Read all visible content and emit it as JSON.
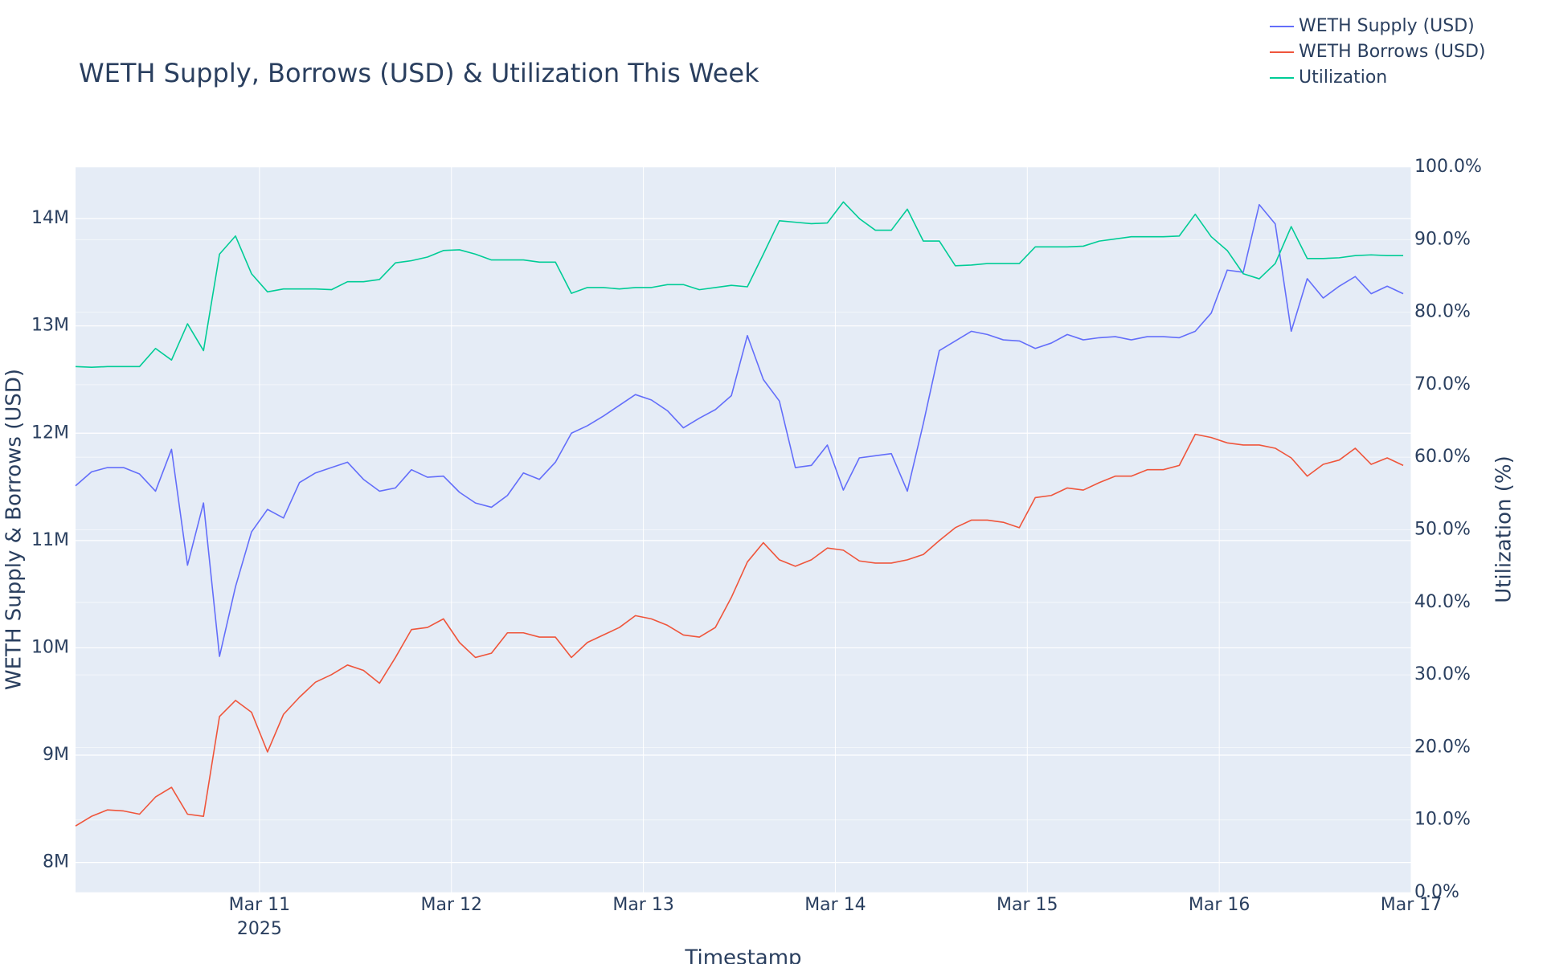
{
  "chart_data": {
    "type": "line",
    "title": "WETH Supply, Borrows (USD) & Utilization This Week",
    "xlabel": "Timestamp",
    "ylabel": "WETH Supply & Borrows (USD)",
    "y2label": "Utilization (%)",
    "x": [
      "2025-03-10T01:00",
      "2025-03-10T03:00",
      "2025-03-10T05:00",
      "2025-03-10T07:00",
      "2025-03-10T09:00",
      "2025-03-10T11:00",
      "2025-03-10T13:00",
      "2025-03-10T15:00",
      "2025-03-10T17:00",
      "2025-03-10T19:00",
      "2025-03-10T21:00",
      "2025-03-10T23:00",
      "2025-03-11T01:00",
      "2025-03-11T03:00",
      "2025-03-11T05:00",
      "2025-03-11T07:00",
      "2025-03-11T09:00",
      "2025-03-11T11:00",
      "2025-03-11T13:00",
      "2025-03-11T15:00",
      "2025-03-11T17:00",
      "2025-03-11T19:00",
      "2025-03-11T21:00",
      "2025-03-11T23:00",
      "2025-03-12T01:00",
      "2025-03-12T03:00",
      "2025-03-12T05:00",
      "2025-03-12T07:00",
      "2025-03-12T09:00",
      "2025-03-12T11:00",
      "2025-03-12T13:00",
      "2025-03-12T15:00",
      "2025-03-12T17:00",
      "2025-03-12T19:00",
      "2025-03-12T21:00",
      "2025-03-12T23:00",
      "2025-03-13T01:00",
      "2025-03-13T03:00",
      "2025-03-13T05:00",
      "2025-03-13T07:00",
      "2025-03-13T09:00",
      "2025-03-13T11:00",
      "2025-03-13T13:00",
      "2025-03-13T15:00",
      "2025-03-13T17:00",
      "2025-03-13T19:00",
      "2025-03-13T21:00",
      "2025-03-13T23:00",
      "2025-03-14T01:00",
      "2025-03-14T03:00",
      "2025-03-14T05:00",
      "2025-03-14T07:00",
      "2025-03-14T09:00",
      "2025-03-14T11:00",
      "2025-03-14T13:00",
      "2025-03-14T15:00",
      "2025-03-14T17:00",
      "2025-03-14T19:00",
      "2025-03-14T21:00",
      "2025-03-14T23:00",
      "2025-03-15T01:00",
      "2025-03-15T03:00",
      "2025-03-15T05:00",
      "2025-03-15T07:00",
      "2025-03-15T09:00",
      "2025-03-15T11:00",
      "2025-03-15T13:00",
      "2025-03-15T15:00",
      "2025-03-15T17:00",
      "2025-03-15T19:00",
      "2025-03-15T21:00",
      "2025-03-15T23:00",
      "2025-03-16T01:00",
      "2025-03-16T03:00",
      "2025-03-16T05:00",
      "2025-03-16T07:00",
      "2025-03-16T09:00",
      "2025-03-16T11:00",
      "2025-03-16T13:00",
      "2025-03-16T15:00",
      "2025-03-16T17:00",
      "2025-03-16T19:00",
      "2025-03-16T21:00",
      "2025-03-16T23:00"
    ],
    "series": [
      {
        "name": "WETH Supply (USD)",
        "color": "#636efa",
        "values": [
          11510000,
          11640000,
          11680000,
          11680000,
          11620000,
          11460000,
          11850000,
          10770000,
          11350000,
          9920000,
          10570000,
          11080000,
          11290000,
          11210000,
          11540000,
          11630000,
          11680000,
          11730000,
          11570000,
          11460000,
          11490000,
          11660000,
          11590000,
          11600000,
          11450000,
          11350000,
          11310000,
          11420000,
          11630000,
          11570000,
          11730000,
          12000000,
          12070000,
          12160000,
          12260000,
          12360000,
          12310000,
          12210000,
          12050000,
          12140000,
          12220000,
          12350000,
          12910000,
          12500000,
          12300000,
          11680000,
          11700000,
          11890000,
          11470000,
          11770000,
          11790000,
          11810000,
          11460000,
          12090000,
          12770000,
          12860000,
          12950000,
          12920000,
          12870000,
          12860000,
          12790000,
          12840000,
          12920000,
          12870000,
          12890000,
          12900000,
          12870000,
          12900000,
          12900000,
          12890000,
          12950000,
          13120000,
          13520000,
          13500000,
          14130000,
          13950000,
          12950000,
          13440000,
          13260000,
          13370000,
          13460000,
          13300000,
          13370000,
          13300000
        ]
      },
      {
        "name": "WETH Borrows (USD)",
        "color": "#ef553b",
        "values": [
          8340000,
          8430000,
          8490000,
          8480000,
          8450000,
          8610000,
          8700000,
          8450000,
          8430000,
          9360000,
          9510000,
          9400000,
          9030000,
          9380000,
          9540000,
          9680000,
          9750000,
          9840000,
          9790000,
          9670000,
          9910000,
          10170000,
          10190000,
          10270000,
          10050000,
          9910000,
          9950000,
          10140000,
          10140000,
          10100000,
          10100000,
          9910000,
          10050000,
          10120000,
          10190000,
          10300000,
          10270000,
          10210000,
          10120000,
          10100000,
          10190000,
          10470000,
          10800000,
          10980000,
          10820000,
          10760000,
          10820000,
          10930000,
          10910000,
          10810000,
          10790000,
          10790000,
          10820000,
          10870000,
          11000000,
          11120000,
          11190000,
          11190000,
          11170000,
          11120000,
          11400000,
          11420000,
          11490000,
          11470000,
          11540000,
          11600000,
          11600000,
          11660000,
          11660000,
          11700000,
          11990000,
          11960000,
          11910000,
          11890000,
          11890000,
          11860000,
          11770000,
          11600000,
          11710000,
          11750000,
          11860000,
          11710000,
          11770000,
          11700000
        ]
      },
      {
        "name": "Utilization",
        "color": "#00cc96",
        "axis": "y2",
        "values": [
          72.5,
          72.4,
          72.5,
          72.5,
          72.5,
          75.0,
          73.4,
          78.4,
          74.7,
          88.0,
          90.5,
          85.3,
          82.8,
          83.2,
          83.2,
          83.2,
          83.1,
          84.2,
          84.2,
          84.5,
          86.8,
          87.1,
          87.6,
          88.5,
          88.6,
          88.0,
          87.2,
          87.2,
          87.2,
          86.9,
          86.9,
          82.6,
          83.4,
          83.4,
          83.2,
          83.4,
          83.4,
          83.8,
          83.8,
          83.1,
          83.4,
          83.7,
          83.5,
          88.0,
          92.6,
          92.4,
          92.2,
          92.3,
          95.2,
          92.9,
          91.3,
          91.3,
          94.2,
          89.8,
          89.8,
          86.4,
          86.5,
          86.7,
          86.7,
          86.7,
          89.0,
          89.0,
          89.0,
          89.1,
          89.8,
          90.1,
          90.4,
          90.4,
          90.4,
          90.5,
          93.5,
          90.4,
          88.5,
          85.3,
          84.6,
          86.7,
          91.8,
          87.4,
          87.4,
          87.5,
          87.8,
          87.9,
          87.8,
          87.8
        ]
      }
    ],
    "xlim": [
      "2025-03-10T01:00",
      "2025-03-17T00:00"
    ],
    "xticks": [
      {
        "value": "2025-03-11T00:00",
        "label": "Mar 11"
      },
      {
        "value": "2025-03-12T00:00",
        "label": "Mar 12"
      },
      {
        "value": "2025-03-13T00:00",
        "label": "Mar 13"
      },
      {
        "value": "2025-03-14T00:00",
        "label": "Mar 14"
      },
      {
        "value": "2025-03-15T00:00",
        "label": "Mar 15"
      },
      {
        "value": "2025-03-16T00:00",
        "label": "Mar 16"
      },
      {
        "value": "2025-03-17T00:00",
        "label": "Mar 17"
      }
    ],
    "xtick_year": "2025",
    "ylim": [
      7720000,
      14480000
    ],
    "yticks": [
      {
        "value": 8000000,
        "label": "8M"
      },
      {
        "value": 9000000,
        "label": "9M"
      },
      {
        "value": 10000000,
        "label": "10M"
      },
      {
        "value": 11000000,
        "label": "11M"
      },
      {
        "value": 12000000,
        "label": "12M"
      },
      {
        "value": 13000000,
        "label": "13M"
      },
      {
        "value": 14000000,
        "label": "14M"
      }
    ],
    "y2lim": [
      0,
      100
    ],
    "y2ticks": [
      {
        "value": 0,
        "label": "0.0%"
      },
      {
        "value": 10,
        "label": "10.0%"
      },
      {
        "value": 20,
        "label": "20.0%"
      },
      {
        "value": 30,
        "label": "30.0%"
      },
      {
        "value": 40,
        "label": "40.0%"
      },
      {
        "value": 50,
        "label": "50.0%"
      },
      {
        "value": 60,
        "label": "60.0%"
      },
      {
        "value": 70,
        "label": "70.0%"
      },
      {
        "value": 80,
        "label": "80.0%"
      },
      {
        "value": 90,
        "label": "90.0%"
      },
      {
        "value": 100,
        "label": "100.0%"
      }
    ],
    "grid": true,
    "legend": "top-right"
  }
}
